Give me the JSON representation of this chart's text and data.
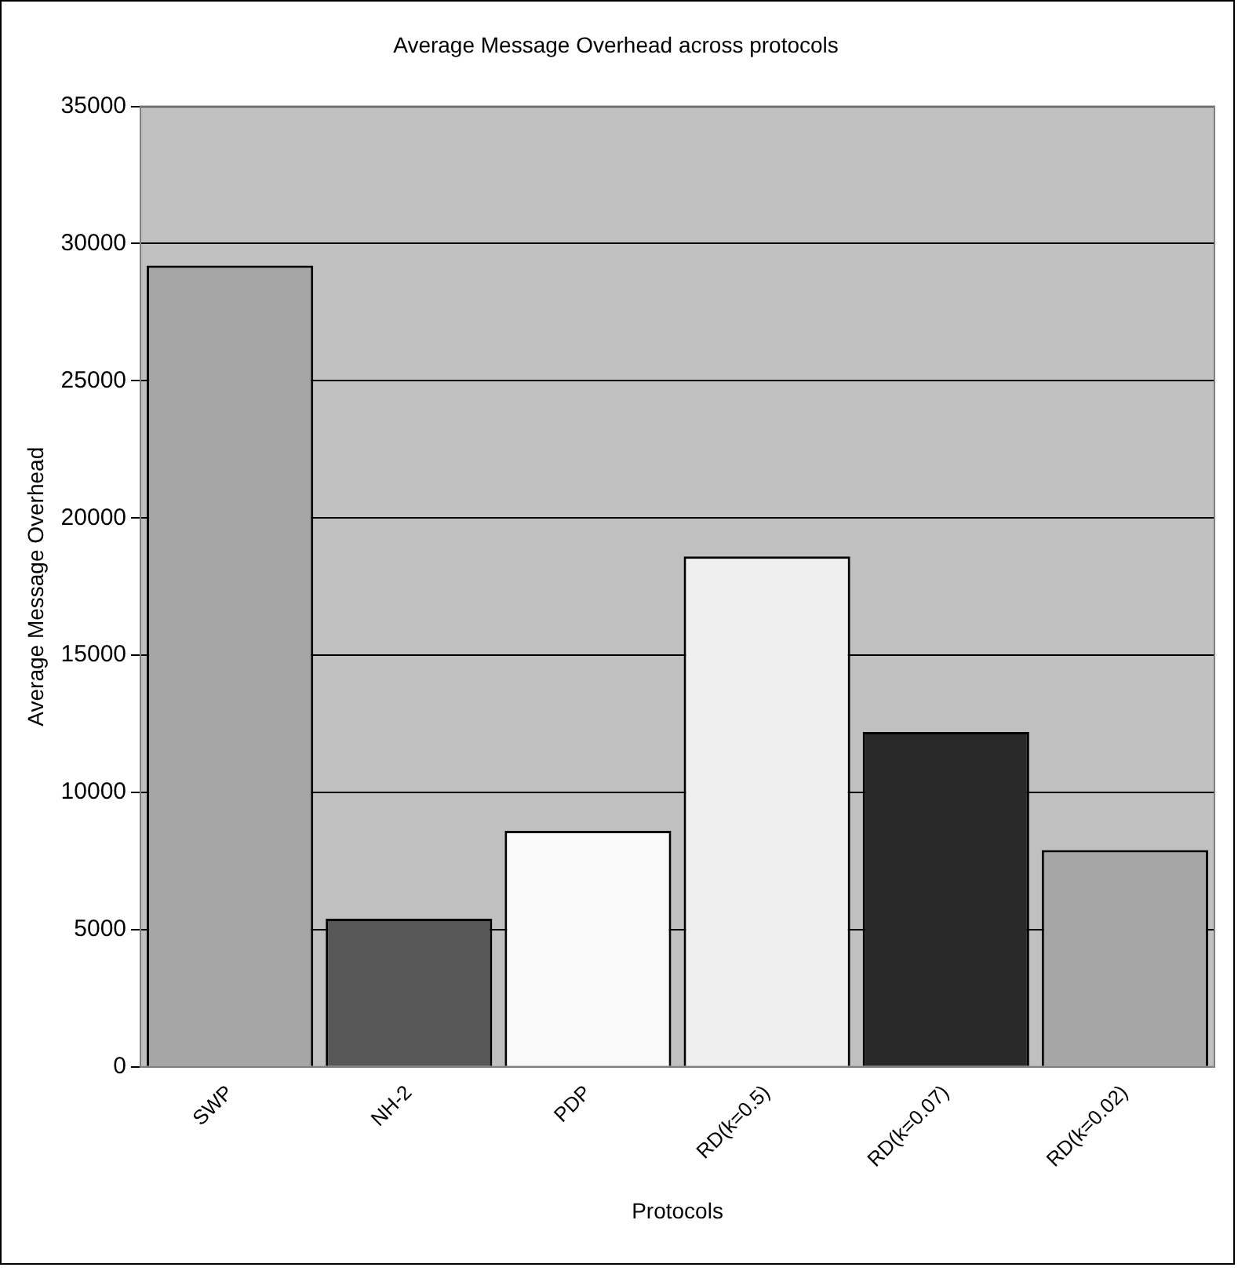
{
  "chart_data": {
    "type": "bar",
    "title": "Average Message Overhead across protocols",
    "xlabel": "Protocols",
    "ylabel": "Average Message Overhead",
    "categories": [
      "SWP",
      "NH-2",
      "PDP",
      "RD(k=0.5)",
      "RD(k=0.07)",
      "RD(k=0.02)"
    ],
    "values": [
      29200,
      5400,
      8600,
      18600,
      12200,
      7900
    ],
    "colors": [
      "#a6a6a6",
      "#575757",
      "#f9f9f9",
      "#efefef",
      "#292929",
      "#a6a6a6"
    ],
    "ylim": [
      0,
      35000
    ],
    "yticks": [
      0,
      5000,
      10000,
      15000,
      20000,
      25000,
      30000,
      35000
    ],
    "grid": "y",
    "legend": false
  }
}
